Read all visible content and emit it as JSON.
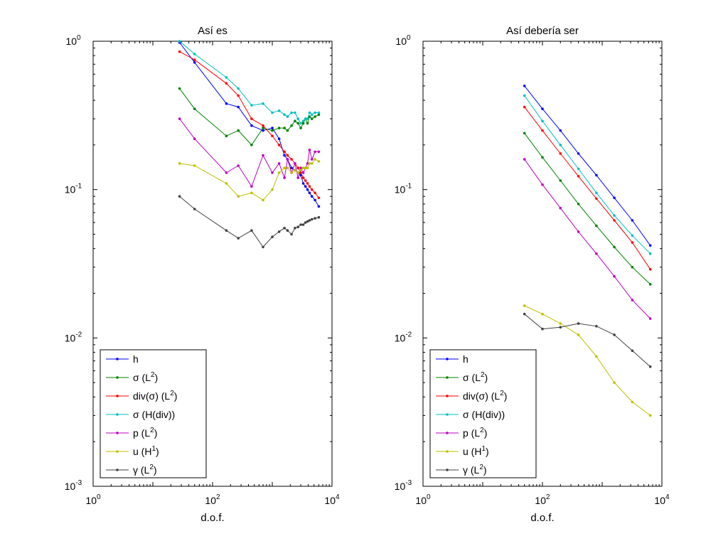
{
  "chart_data": [
    {
      "type": "line",
      "title": "Así es",
      "xlabel": "d.o.f.",
      "ylabel": "",
      "xscale": "log",
      "yscale": "log",
      "xlim": [
        1,
        10000
      ],
      "ylim": [
        0.001,
        1
      ],
      "grid": false,
      "legend": "bottom-left",
      "x_ticks": [
        {
          "base": "10",
          "exp": "0"
        },
        {
          "base": "10",
          "exp": "2"
        },
        {
          "base": "10",
          "exp": "4"
        }
      ],
      "y_ticks": [
        {
          "base": "10",
          "exp": "-3"
        },
        {
          "base": "10",
          "exp": "-2"
        },
        {
          "base": "10",
          "exp": "-1"
        },
        {
          "base": "10",
          "exp": "0"
        }
      ],
      "series": [
        {
          "name": "h",
          "label": "h",
          "sup": "",
          "tail": "",
          "color": "#0000ff",
          "x": [
            28,
            50,
            170,
            270,
            450,
            700,
            1000,
            1300,
            1600,
            1800,
            2100,
            2400,
            2700,
            3000,
            3300,
            3600,
            3900,
            4200,
            4600,
            5200,
            6000
          ],
          "y": [
            0.98,
            0.72,
            0.38,
            0.36,
            0.27,
            0.25,
            0.26,
            0.22,
            0.17,
            0.16,
            0.14,
            0.135,
            0.13,
            0.125,
            0.11,
            0.105,
            0.1,
            0.095,
            0.09,
            0.085,
            0.077
          ]
        },
        {
          "name": "σ (L²)",
          "label": "σ (L",
          "sup": "2",
          "tail": ")",
          "color": "#008000",
          "x": [
            28,
            50,
            170,
            270,
            450,
            700,
            1000,
            1300,
            1600,
            1800,
            2100,
            2400,
            2700,
            3000,
            3300,
            3600,
            3900,
            4200,
            4600,
            5200,
            6000
          ],
          "y": [
            0.48,
            0.35,
            0.23,
            0.25,
            0.2,
            0.26,
            0.25,
            0.26,
            0.26,
            0.25,
            0.27,
            0.29,
            0.28,
            0.26,
            0.28,
            0.3,
            0.28,
            0.31,
            0.3,
            0.31,
            0.32
          ]
        },
        {
          "name": "div(σ) (L²)",
          "label": "div(σ) (L",
          "sup": "2",
          "tail": ")",
          "color": "#ff0000",
          "x": [
            28,
            50,
            170,
            270,
            450,
            700,
            1000,
            1300,
            1600,
            1800,
            2100,
            2400,
            2700,
            3000,
            3300,
            3600,
            3900,
            4200,
            4600,
            5200,
            6000
          ],
          "y": [
            0.85,
            0.75,
            0.52,
            0.43,
            0.3,
            0.27,
            0.23,
            0.2,
            0.18,
            0.17,
            0.16,
            0.15,
            0.14,
            0.13,
            0.12,
            0.115,
            0.11,
            0.105,
            0.1,
            0.095,
            0.088
          ]
        },
        {
          "name": "σ (H(div))",
          "label": "σ (H(div))",
          "sup": "",
          "tail": "",
          "color": "#00bfbf",
          "x": [
            28,
            50,
            170,
            270,
            450,
            700,
            1000,
            1300,
            1600,
            1800,
            2100,
            2400,
            2700,
            3000,
            3300,
            3600,
            3900,
            4200,
            4600,
            5200,
            6000
          ],
          "y": [
            1.0,
            0.82,
            0.57,
            0.48,
            0.37,
            0.38,
            0.33,
            0.34,
            0.32,
            0.31,
            0.33,
            0.33,
            0.3,
            0.28,
            0.29,
            0.3,
            0.3,
            0.33,
            0.32,
            0.33,
            0.33
          ]
        },
        {
          "name": "p (L²)",
          "label": "p (L",
          "sup": "2",
          "tail": ")",
          "color": "#bf00bf",
          "x": [
            28,
            50,
            170,
            270,
            450,
            700,
            1000,
            1300,
            1600,
            1800,
            2100,
            2400,
            2700,
            3000,
            3300,
            3600,
            3900,
            4200,
            4600,
            5200,
            6000
          ],
          "y": [
            0.3,
            0.22,
            0.13,
            0.145,
            0.105,
            0.17,
            0.13,
            0.15,
            0.12,
            0.16,
            0.13,
            0.15,
            0.12,
            0.14,
            0.13,
            0.14,
            0.15,
            0.185,
            0.16,
            0.18,
            0.18
          ]
        },
        {
          "name": "u (H¹)",
          "label": "u (H",
          "sup": "1",
          "tail": ")",
          "color": "#bfbf00",
          "x": [
            28,
            50,
            170,
            270,
            450,
            700,
            1000,
            1300,
            1600,
            1800,
            2100,
            2400,
            2700,
            3000,
            3300,
            3600,
            3900,
            4200,
            4600,
            5200,
            6000
          ],
          "y": [
            0.15,
            0.145,
            0.11,
            0.09,
            0.095,
            0.085,
            0.1,
            0.13,
            0.14,
            0.14,
            0.13,
            0.135,
            0.13,
            0.135,
            0.14,
            0.14,
            0.14,
            0.15,
            0.15,
            0.16,
            0.155
          ]
        },
        {
          "name": "γ (L²)",
          "label": "γ (L",
          "sup": "2",
          "tail": ")",
          "color": "#404040",
          "x": [
            28,
            50,
            170,
            270,
            450,
            700,
            1000,
            1300,
            1600,
            1800,
            2100,
            2400,
            2700,
            3000,
            3300,
            3600,
            3900,
            4200,
            4600,
            5200,
            6000
          ],
          "y": [
            0.09,
            0.074,
            0.053,
            0.047,
            0.053,
            0.041,
            0.048,
            0.052,
            0.055,
            0.053,
            0.05,
            0.055,
            0.056,
            0.058,
            0.058,
            0.06,
            0.061,
            0.062,
            0.063,
            0.064,
            0.065
          ]
        }
      ]
    },
    {
      "type": "line",
      "title": "Así debería ser",
      "xlabel": "d.o.f.",
      "ylabel": "",
      "xscale": "log",
      "yscale": "log",
      "xlim": [
        1,
        10000
      ],
      "ylim": [
        0.001,
        1
      ],
      "grid": false,
      "legend": "bottom-left",
      "x_ticks": [
        {
          "base": "10",
          "exp": "0"
        },
        {
          "base": "10",
          "exp": "2"
        },
        {
          "base": "10",
          "exp": "4"
        }
      ],
      "y_ticks": [
        {
          "base": "10",
          "exp": "-3"
        },
        {
          "base": "10",
          "exp": "-2"
        },
        {
          "base": "10",
          "exp": "-1"
        },
        {
          "base": "10",
          "exp": "0"
        }
      ],
      "series": [
        {
          "name": "h",
          "label": "h",
          "sup": "",
          "tail": "",
          "color": "#0000ff",
          "x": [
            50,
            100,
            200,
            400,
            800,
            1600,
            3200,
            6400
          ],
          "y": [
            0.5,
            0.35,
            0.25,
            0.175,
            0.125,
            0.088,
            0.062,
            0.042
          ]
        },
        {
          "name": "σ (L²)",
          "label": "σ (L",
          "sup": "2",
          "tail": ")",
          "color": "#008000",
          "x": [
            50,
            100,
            200,
            400,
            800,
            1600,
            3200,
            6400
          ],
          "y": [
            0.24,
            0.165,
            0.115,
            0.08,
            0.057,
            0.041,
            0.03,
            0.023
          ]
        },
        {
          "name": "div(σ) (L²)",
          "label": "div(σ) (L",
          "sup": "2",
          "tail": ")",
          "color": "#ff0000",
          "x": [
            50,
            100,
            200,
            400,
            800,
            1600,
            3200,
            6400
          ],
          "y": [
            0.36,
            0.25,
            0.175,
            0.123,
            0.087,
            0.062,
            0.044,
            0.029
          ]
        },
        {
          "name": "σ (H(div))",
          "label": "σ (H(div))",
          "sup": "",
          "tail": "",
          "color": "#00bfbf",
          "x": [
            50,
            100,
            200,
            400,
            800,
            1600,
            3200,
            6400
          ],
          "y": [
            0.43,
            0.29,
            0.2,
            0.138,
            0.095,
            0.067,
            0.049,
            0.037
          ]
        },
        {
          "name": "p (L²)",
          "label": "p (L",
          "sup": "2",
          "tail": ")",
          "color": "#bf00bf",
          "x": [
            50,
            100,
            200,
            400,
            800,
            1600,
            3200,
            6400
          ],
          "y": [
            0.16,
            0.108,
            0.075,
            0.052,
            0.037,
            0.026,
            0.018,
            0.0135
          ]
        },
        {
          "name": "u (H¹)",
          "label": "u (H",
          "sup": "1",
          "tail": ")",
          "color": "#bfbf00",
          "x": [
            50,
            100,
            200,
            400,
            800,
            1600,
            3200,
            6400
          ],
          "y": [
            0.0165,
            0.0145,
            0.0125,
            0.0105,
            0.0075,
            0.005,
            0.0037,
            0.003
          ]
        },
        {
          "name": "γ (L²)",
          "label": "γ (L",
          "sup": "2",
          "tail": ")",
          "color": "#404040",
          "x": [
            50,
            100,
            200,
            400,
            800,
            1600,
            3200,
            6400
          ],
          "y": [
            0.0145,
            0.0115,
            0.0118,
            0.0125,
            0.012,
            0.0105,
            0.0082,
            0.0064
          ]
        }
      ]
    }
  ]
}
